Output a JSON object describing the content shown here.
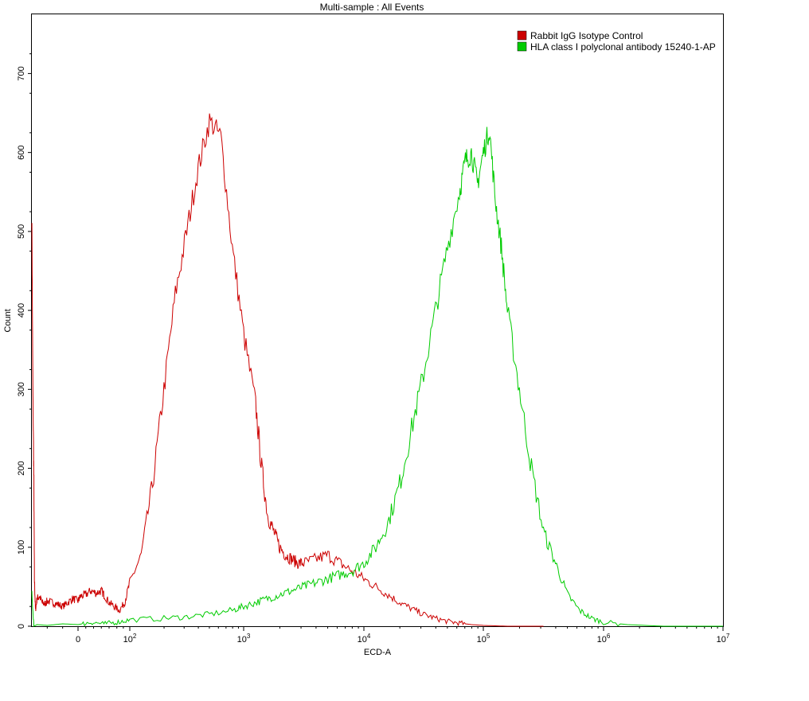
{
  "chart_data": {
    "type": "line",
    "title": "Multi-sample : All Events",
    "xlabel": "ECD-A",
    "ylabel": "Count",
    "ylim": [
      0,
      775
    ],
    "y_ticks": [
      0,
      100,
      200,
      300,
      400,
      500,
      600,
      700
    ],
    "x_scale": "biexponential",
    "x_ticks": [
      {
        "label": "0",
        "base": "",
        "exp": ""
      },
      {
        "label": "",
        "base": "10",
        "exp": "2"
      },
      {
        "label": "",
        "base": "10",
        "exp": "3"
      },
      {
        "label": "",
        "base": "10",
        "exp": "4"
      },
      {
        "label": "",
        "base": "10",
        "exp": "5"
      },
      {
        "label": "",
        "base": "10",
        "exp": "6"
      },
      {
        "label": "",
        "base": "10",
        "exp": "7"
      }
    ],
    "legend_position": "top-right",
    "series": [
      {
        "name": "Rabbit  IgG Isotype Control",
        "color": "#cc0000",
        "x": [
          -0.9,
          -0.88,
          -0.86,
          -0.85,
          -0.83,
          -0.8,
          -0.75,
          -0.7,
          -0.65,
          -0.6,
          -0.5,
          -0.4,
          -0.3,
          -0.2,
          -0.1,
          0,
          0.1,
          0.3,
          0.5,
          0.7,
          0.9,
          1.0,
          1.2,
          1.4,
          1.6,
          1.8,
          2.0,
          2.1,
          2.2,
          2.3,
          2.4,
          2.5,
          2.6,
          2.7,
          2.8,
          2.9,
          3.0,
          3.1,
          3.15,
          3.2,
          3.25,
          3.3,
          3.35,
          3.4,
          3.45,
          3.5,
          3.6,
          3.7,
          3.8,
          3.9,
          4.0,
          4.1,
          4.2,
          4.3,
          4.4,
          4.5,
          4.6,
          4.7,
          4.8,
          4.9,
          5.0,
          5.2,
          5.5
        ],
        "y": [
          520,
          300,
          180,
          60,
          20,
          35,
          38,
          30,
          28,
          32,
          30,
          28,
          25,
          30,
          35,
          32,
          38,
          40,
          45,
          42,
          45,
          40,
          30,
          25,
          20,
          30,
          55,
          90,
          180,
          300,
          420,
          500,
          580,
          640,
          620,
          480,
          370,
          280,
          200,
          140,
          120,
          100,
          90,
          85,
          80,
          80,
          85,
          90,
          80,
          70,
          60,
          50,
          40,
          30,
          22,
          15,
          10,
          6,
          4,
          2,
          1,
          0,
          0
        ]
      },
      {
        "name": "HLA class I  polyclonal antibody 15240-1-AP",
        "color": "#00cc00",
        "x": [
          -0.9,
          -0.86,
          -0.8,
          -0.6,
          -0.3,
          0,
          0.5,
          1.0,
          1.5,
          2.0,
          2.3,
          2.5,
          2.7,
          2.9,
          3.0,
          3.1,
          3.2,
          3.3,
          3.4,
          3.5,
          3.6,
          3.7,
          3.8,
          3.9,
          4.0,
          4.1,
          4.2,
          4.3,
          4.4,
          4.5,
          4.6,
          4.7,
          4.8,
          4.85,
          4.9,
          4.95,
          5.0,
          5.05,
          5.1,
          5.15,
          5.2,
          5.3,
          5.4,
          5.5,
          5.6,
          5.7,
          5.8,
          5.9,
          6.0,
          6.2,
          6.5,
          7.0
        ],
        "y": [
          40,
          0,
          2,
          1,
          3,
          2,
          5,
          3,
          5,
          8,
          10,
          12,
          15,
          20,
          25,
          30,
          35,
          40,
          45,
          50,
          55,
          60,
          65,
          70,
          80,
          100,
          130,
          180,
          250,
          320,
          400,
          480,
          550,
          590,
          600,
          560,
          600,
          630,
          540,
          480,
          400,
          300,
          200,
          120,
          80,
          40,
          20,
          10,
          5,
          2,
          0,
          0
        ]
      }
    ]
  }
}
